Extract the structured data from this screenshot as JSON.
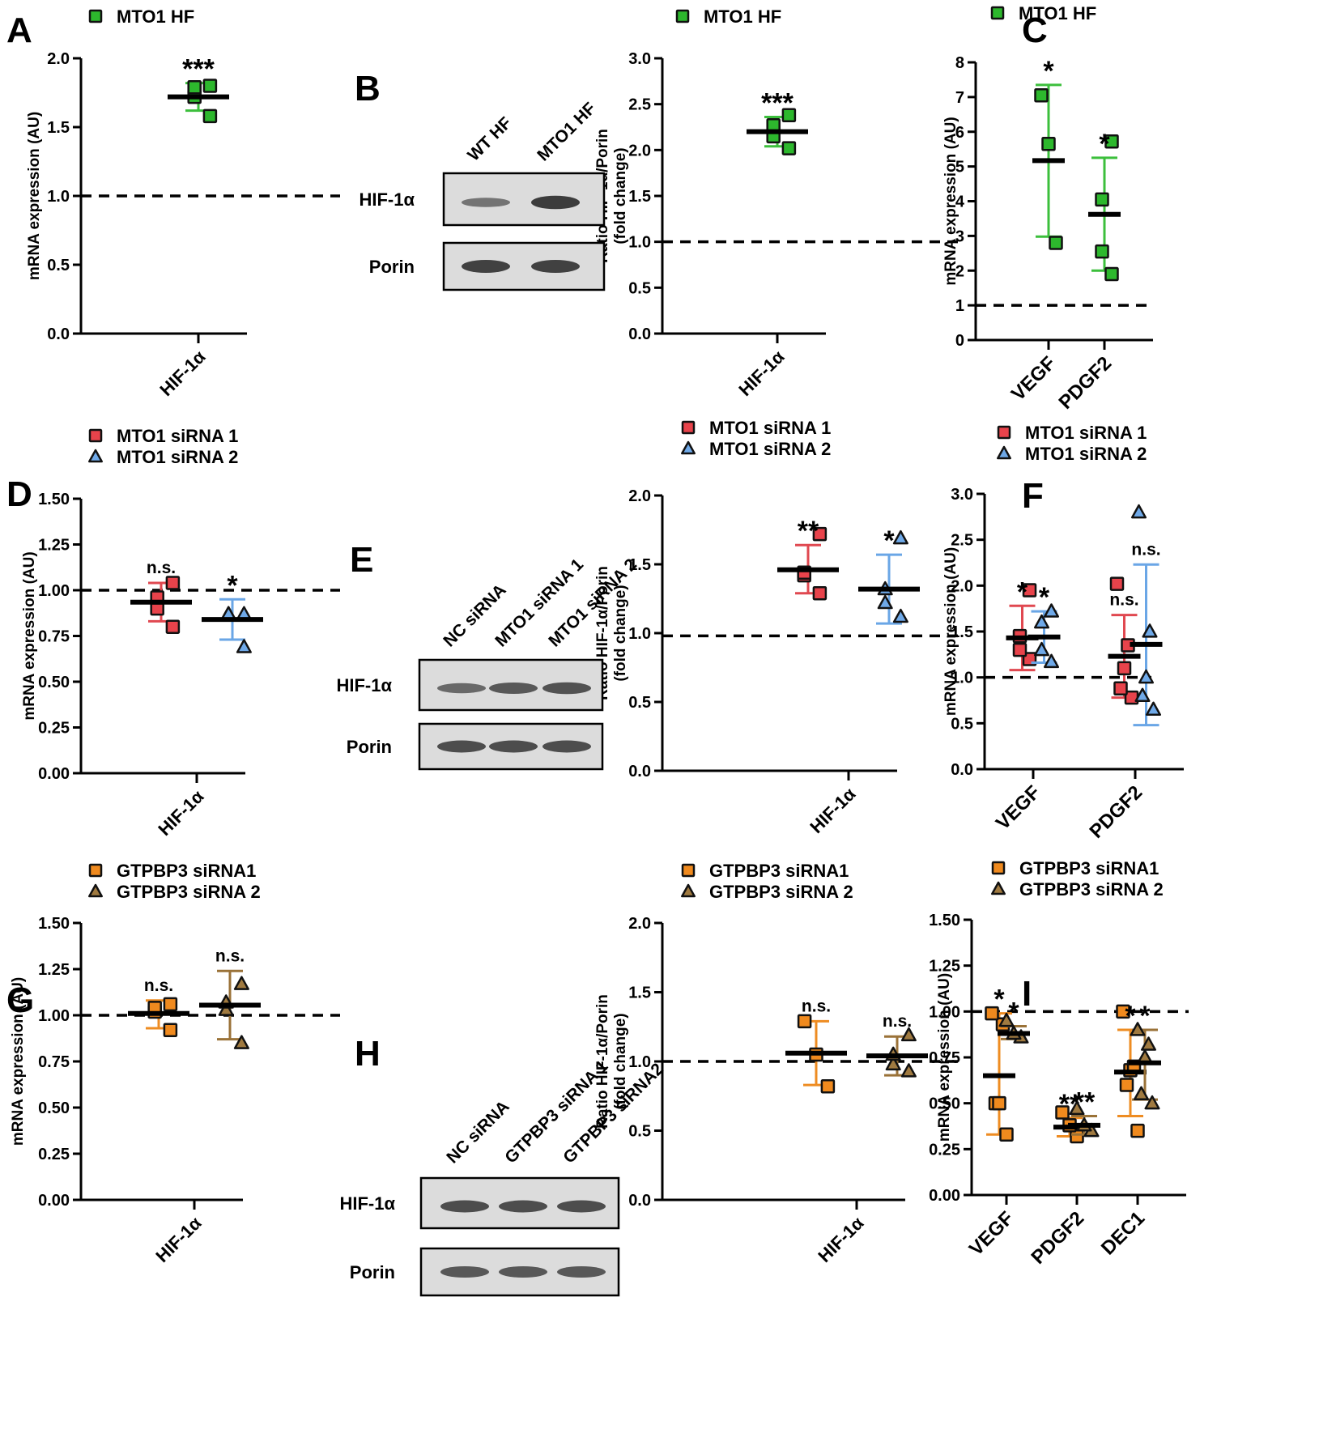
{
  "figure": {
    "panel_letters": [
      "A",
      "B",
      "C",
      "D",
      "E",
      "F",
      "G",
      "H",
      "I"
    ]
  },
  "colors": {
    "mto1_hf": "#2db82d",
    "mto1_hf_err": "#3cbf3c",
    "sirna1": "#e8434b",
    "sirna1_err": "#e04850",
    "sirna2": "#6fa9e8",
    "sirna2_err": "#6aa6e6",
    "gtpbp3_1": "#f08a1e",
    "gtpbp3_1_err": "#ee8c22",
    "gtpbp3_2": "#a07a40",
    "gtpbp3_2_err": "#9a7238"
  },
  "blots": [
    {
      "id": "B",
      "lanes": [
        "WT HF",
        "MTO1 HF"
      ],
      "rows": [
        "HIF-1α",
        "Porin"
      ],
      "intensities": [
        [
          0.35,
          0.85
        ],
        [
          0.8,
          0.8
        ]
      ]
    },
    {
      "id": "E",
      "lanes": [
        "NC siRNA",
        "MTO1 siRNA 1",
        "MTO1 siRNA 2"
      ],
      "rows": [
        "HIF-1α",
        "Porin"
      ],
      "intensities": [
        [
          0.45,
          0.6,
          0.65
        ],
        [
          0.7,
          0.7,
          0.7
        ]
      ]
    },
    {
      "id": "H",
      "lanes": [
        "NC siRNA",
        "GTPBP3 siRNA 1",
        "GTPBP3 siRNA2"
      ],
      "rows": [
        "HIF-1α",
        "Porin"
      ],
      "intensities": [
        [
          0.7,
          0.7,
          0.7
        ],
        [
          0.6,
          0.6,
          0.6
        ]
      ]
    }
  ],
  "chart_data": [
    {
      "id": "A",
      "type": "scatter",
      "legend": [
        {
          "label": "MTO1 HF",
          "marker": "square",
          "color_key": "mto1_hf"
        }
      ],
      "ylabel": "mRNA expression (AU)",
      "ylim": [
        0,
        2.0
      ],
      "yticks": [
        "0.0",
        "0.5",
        "1.0",
        "1.5",
        "2.0"
      ],
      "yticks_values": [
        0,
        0.5,
        1.0,
        1.5,
        2.0
      ],
      "reference_line": 1.0,
      "categories": [
        "HIF-1α"
      ],
      "series": [
        {
          "name": "MTO1 HF",
          "marker": "square",
          "color_key": "mto1_hf",
          "groups": [
            {
              "cat": 0,
              "points": [
                1.58,
                1.72,
                1.79,
                1.8
              ],
              "mean": 1.72,
              "err": [
                1.62,
                1.82
              ],
              "sig": "***"
            }
          ]
        }
      ]
    },
    {
      "id": "B",
      "type": "scatter",
      "legend": [
        {
          "label": "MTO1 HF",
          "marker": "square",
          "color_key": "mto1_hf"
        }
      ],
      "ylabel": "Ratio HIF-1α/Porin",
      "ylabel2": "(fold change)",
      "ylim": [
        0,
        3.0
      ],
      "yticks": [
        "0.0",
        "0.5",
        "1.0",
        "1.5",
        "2.0",
        "2.5",
        "3.0"
      ],
      "yticks_values": [
        0,
        0.5,
        1.0,
        1.5,
        2.0,
        2.5,
        3.0
      ],
      "reference_line": 1.0,
      "categories": [
        "HIF-1α"
      ],
      "series": [
        {
          "name": "MTO1 HF",
          "marker": "square",
          "color_key": "mto1_hf",
          "groups": [
            {
              "cat": 0,
              "points": [
                2.02,
                2.15,
                2.27,
                2.38
              ],
              "mean": 2.2,
              "err": [
                2.04,
                2.36
              ],
              "sig": "***"
            }
          ]
        }
      ]
    },
    {
      "id": "C",
      "type": "scatter",
      "legend": [
        {
          "label": "MTO1 HF",
          "marker": "square",
          "color_key": "mto1_hf"
        }
      ],
      "ylabel": "mRNA expression (AU)",
      "ylim": [
        0,
        8
      ],
      "yticks": [
        "0",
        "1",
        "2",
        "3",
        "4",
        "5",
        "6",
        "7",
        "8"
      ],
      "yticks_values": [
        0,
        1,
        2,
        3,
        4,
        5,
        6,
        7,
        8
      ],
      "reference_line": 1.0,
      "categories": [
        "VEGF",
        "PDGF2"
      ],
      "series": [
        {
          "name": "MTO1 HF",
          "marker": "square",
          "color_key": "mto1_hf",
          "groups": [
            {
              "cat": 0,
              "points": [
                2.8,
                5.65,
                7.05
              ],
              "mean": 5.17,
              "err": [
                2.98,
                7.35
              ],
              "sig": "*"
            },
            {
              "cat": 1,
              "points": [
                1.9,
                2.55,
                4.05,
                5.72
              ],
              "mean": 3.62,
              "err": [
                2.0,
                5.25
              ],
              "sig": "*"
            }
          ]
        }
      ]
    },
    {
      "id": "D",
      "type": "scatter",
      "legend": [
        {
          "label": "MTO1 siRNA 1",
          "marker": "square",
          "color_key": "sirna1"
        },
        {
          "label": "MTO1 siRNA 2",
          "marker": "triangle",
          "color_key": "sirna2"
        }
      ],
      "ylabel": "mRNA expression (AU)",
      "ylim": [
        0,
        1.5
      ],
      "yticks": [
        "0.00",
        "0.25",
        "0.50",
        "0.75",
        "1.00",
        "1.25",
        "1.50"
      ],
      "yticks_values": [
        0,
        0.25,
        0.5,
        0.75,
        1.0,
        1.25,
        1.5
      ],
      "reference_line": 1.0,
      "categories": [
        "HIF-1α"
      ],
      "series": [
        {
          "name": "MTO1 siRNA 1",
          "marker": "square",
          "color_key": "sirna1",
          "groups": [
            {
              "cat": 0,
              "offset": -0.55,
              "points": [
                0.8,
                0.9,
                0.96,
                1.04
              ],
              "mean": 0.935,
              "err": [
                0.83,
                1.04
              ],
              "sig": "n.s."
            }
          ]
        },
        {
          "name": "MTO1 siRNA 2",
          "marker": "triangle",
          "color_key": "sirna2",
          "groups": [
            {
              "cat": 0,
              "offset": 0.55,
              "points": [
                0.69,
                0.87,
                0.87,
                0.87
              ],
              "mean": 0.84,
              "err": [
                0.73,
                0.95
              ],
              "sig": "*"
            }
          ]
        }
      ]
    },
    {
      "id": "E",
      "type": "scatter",
      "legend": [
        {
          "label": "MTO1 siRNA 1",
          "marker": "square",
          "color_key": "sirna1"
        },
        {
          "label": "MTO1 siRNA 2",
          "marker": "triangle",
          "color_key": "sirna2"
        }
      ],
      "ylabel": "Ratio HIF-1α/Porin",
      "ylabel2": "(fold change)",
      "ylim": [
        0,
        2.0
      ],
      "yticks": [
        "0.0",
        "0.5",
        "1.0",
        "1.5",
        "2.0"
      ],
      "yticks_values": [
        0,
        0.5,
        1.0,
        1.5,
        2.0
      ],
      "reference_line": 0.98,
      "categories": [
        "HIF-1α"
      ],
      "series": [
        {
          "name": "MTO1 siRNA 1",
          "marker": "square",
          "color_key": "sirna1",
          "groups": [
            {
              "cat": 0,
              "offset": -0.5,
              "points": [
                1.29,
                1.42,
                1.44,
                1.72
              ],
              "mean": 1.46,
              "err": [
                1.29,
                1.64
              ],
              "sig": "**"
            }
          ]
        },
        {
          "name": "MTO1 siRNA 2",
          "marker": "triangle",
          "color_key": "sirna2",
          "groups": [
            {
              "cat": 0,
              "offset": 0.5,
              "points": [
                1.12,
                1.22,
                1.32,
                1.69
              ],
              "mean": 1.32,
              "err": [
                1.07,
                1.57
              ],
              "sig": "*"
            }
          ]
        }
      ]
    },
    {
      "id": "F",
      "type": "scatter",
      "legend": [
        {
          "label": "MTO1 siRNA 1",
          "marker": "square",
          "color_key": "sirna1"
        },
        {
          "label": "MTO1 siRNA 2",
          "marker": "triangle",
          "color_key": "sirna2"
        }
      ],
      "ylabel": "mRNA expression (AU)",
      "ylim": [
        0,
        3.0
      ],
      "yticks": [
        "0.0",
        "0.5",
        "1.0",
        "1.5",
        "2.0",
        "2.5",
        "3.0"
      ],
      "yticks_values": [
        0,
        0.5,
        1.0,
        1.5,
        2.0,
        2.5,
        3.0
      ],
      "reference_line": 1.0,
      "categories": [
        "VEGF",
        "PDGF2"
      ],
      "series": [
        {
          "name": "MTO1 siRNA 1",
          "marker": "square",
          "color_key": "sirna1",
          "groups": [
            {
              "cat": 0,
              "offset": -0.45,
              "points": [
                1.2,
                1.3,
                1.45,
                1.95
              ],
              "mean": 1.43,
              "err": [
                1.08,
                1.78
              ],
              "sig": "*"
            },
            {
              "cat": 1,
              "offset": -0.45,
              "points": [
                0.78,
                0.88,
                1.1,
                1.35,
                2.02
              ],
              "mean": 1.23,
              "err": [
                0.78,
                1.68
              ],
              "sig": "n.s."
            }
          ]
        },
        {
          "name": "MTO1 siRNA 2",
          "marker": "triangle",
          "color_key": "sirna2",
          "groups": [
            {
              "cat": 0,
              "offset": 0.45,
              "points": [
                1.17,
                1.3,
                1.6,
                1.72
              ],
              "mean": 1.44,
              "err": [
                1.16,
                1.72
              ],
              "sig": "*"
            },
            {
              "cat": 1,
              "offset": 0.45,
              "points": [
                0.65,
                0.8,
                1.0,
                1.5,
                2.8
              ],
              "mean": 1.36,
              "err": [
                0.48,
                2.23
              ],
              "sig": "n.s."
            }
          ]
        }
      ]
    },
    {
      "id": "G",
      "type": "scatter",
      "legend": [
        {
          "label": "GTPBP3 siRNA1",
          "marker": "square",
          "color_key": "gtpbp3_1"
        },
        {
          "label": "GTPBP3 siRNA 2",
          "marker": "triangle",
          "color_key": "gtpbp3_2"
        }
      ],
      "ylabel": "mRNA expression (AU)",
      "ylim": [
        0,
        1.5
      ],
      "yticks": [
        "0.00",
        "0.25",
        "0.50",
        "0.75",
        "1.00",
        "1.25",
        "1.50"
      ],
      "yticks_values": [
        0,
        0.25,
        0.5,
        0.75,
        1.0,
        1.25,
        1.5
      ],
      "reference_line": 1.0,
      "categories": [
        "HIF-1α"
      ],
      "series": [
        {
          "name": "GTPBP3 siRNA1",
          "marker": "square",
          "color_key": "gtpbp3_1",
          "groups": [
            {
              "cat": 0,
              "offset": -0.55,
              "points": [
                0.92,
                1.02,
                1.04,
                1.06
              ],
              "mean": 1.01,
              "err": [
                0.93,
                1.08
              ],
              "sig": "n.s."
            }
          ]
        },
        {
          "name": "GTPBP3 siRNA 2",
          "marker": "triangle",
          "color_key": "gtpbp3_2",
          "groups": [
            {
              "cat": 0,
              "offset": 0.55,
              "points": [
                0.85,
                1.03,
                1.07,
                1.17
              ],
              "mean": 1.055,
              "err": [
                0.87,
                1.24
              ],
              "sig": "n.s."
            }
          ]
        }
      ]
    },
    {
      "id": "H",
      "type": "scatter",
      "legend": [
        {
          "label": "GTPBP3 siRNA1",
          "marker": "square",
          "color_key": "gtpbp3_1"
        },
        {
          "label": "GTPBP3 siRNA 2",
          "marker": "triangle",
          "color_key": "gtpbp3_2"
        }
      ],
      "ylabel": "Ratio HIF-1α/Porin",
      "ylabel2": "(fold change)",
      "ylim": [
        0,
        2.0
      ],
      "yticks": [
        "0.0",
        "0.5",
        "1.0",
        "1.5",
        "2.0"
      ],
      "yticks_values": [
        0,
        0.5,
        1.0,
        1.5,
        2.0
      ],
      "reference_line": 1.0,
      "categories": [
        "HIF-1α"
      ],
      "series": [
        {
          "name": "GTPBP3 siRNA1",
          "marker": "square",
          "color_key": "gtpbp3_1",
          "groups": [
            {
              "cat": 0,
              "offset": -0.5,
              "points": [
                0.82,
                1.05,
                1.29
              ],
              "mean": 1.06,
              "err": [
                0.83,
                1.29
              ],
              "sig": "n.s."
            }
          ]
        },
        {
          "name": "GTPBP3 siRNA 2",
          "marker": "triangle",
          "color_key": "gtpbp3_2",
          "groups": [
            {
              "cat": 0,
              "offset": 0.5,
              "points": [
                0.93,
                0.98,
                1.05,
                1.19
              ],
              "mean": 1.04,
              "err": [
                0.9,
                1.18
              ],
              "sig": "n.s."
            }
          ]
        }
      ]
    },
    {
      "id": "I",
      "type": "scatter",
      "legend": [
        {
          "label": "GTPBP3 siRNA1",
          "marker": "square",
          "color_key": "gtpbp3_1"
        },
        {
          "label": "GTPBP3 siRNA 2",
          "marker": "triangle",
          "color_key": "gtpbp3_2"
        }
      ],
      "ylabel": "mRNA expression (AU)",
      "ylim": [
        0,
        1.5
      ],
      "yticks": [
        "0.00",
        "0.25",
        "0.50",
        "0.75",
        "1.00",
        "1.25",
        "1.50"
      ],
      "yticks_values": [
        0,
        0.25,
        0.5,
        0.75,
        1.0,
        1.25,
        1.5
      ],
      "reference_line": 1.0,
      "categories": [
        "VEGF",
        "PDGF2",
        "DEC1"
      ],
      "series": [
        {
          "name": "GTPBP3 siRNA1",
          "marker": "square",
          "color_key": "gtpbp3_1",
          "groups": [
            {
              "cat": 0,
              "offset": -0.45,
              "points": [
                0.33,
                0.5,
                0.5,
                0.93,
                0.99
              ],
              "mean": 0.65,
              "err": [
                0.33,
                0.99
              ],
              "sig": "*"
            },
            {
              "cat": 1,
              "offset": -0.45,
              "points": [
                0.32,
                0.38,
                0.45
              ],
              "mean": 0.37,
              "err": [
                0.32,
                0.42
              ],
              "sig": "**"
            },
            {
              "cat": 2,
              "offset": -0.45,
              "points": [
                0.35,
                0.6,
                0.68,
                0.7,
                1.0
              ],
              "mean": 0.67,
              "err": [
                0.43,
                0.9
              ],
              "sig": "*"
            }
          ]
        },
        {
          "name": "GTPBP3 siRNA 2",
          "marker": "triangle",
          "color_key": "gtpbp3_2",
          "groups": [
            {
              "cat": 0,
              "offset": 0.45,
              "points": [
                0.86,
                0.88,
                0.95
              ],
              "mean": 0.88,
              "err": [
                0.85,
                0.92
              ],
              "sig": "*"
            },
            {
              "cat": 1,
              "offset": 0.45,
              "points": [
                0.35,
                0.38,
                0.47
              ],
              "mean": 0.38,
              "err": [
                0.33,
                0.43
              ],
              "sig": "**"
            },
            {
              "cat": 2,
              "offset": 0.45,
              "points": [
                0.5,
                0.55,
                0.75,
                0.82,
                0.9
              ],
              "mean": 0.72,
              "err": [
                0.52,
                0.9
              ],
              "sig": "*"
            }
          ]
        }
      ]
    }
  ]
}
